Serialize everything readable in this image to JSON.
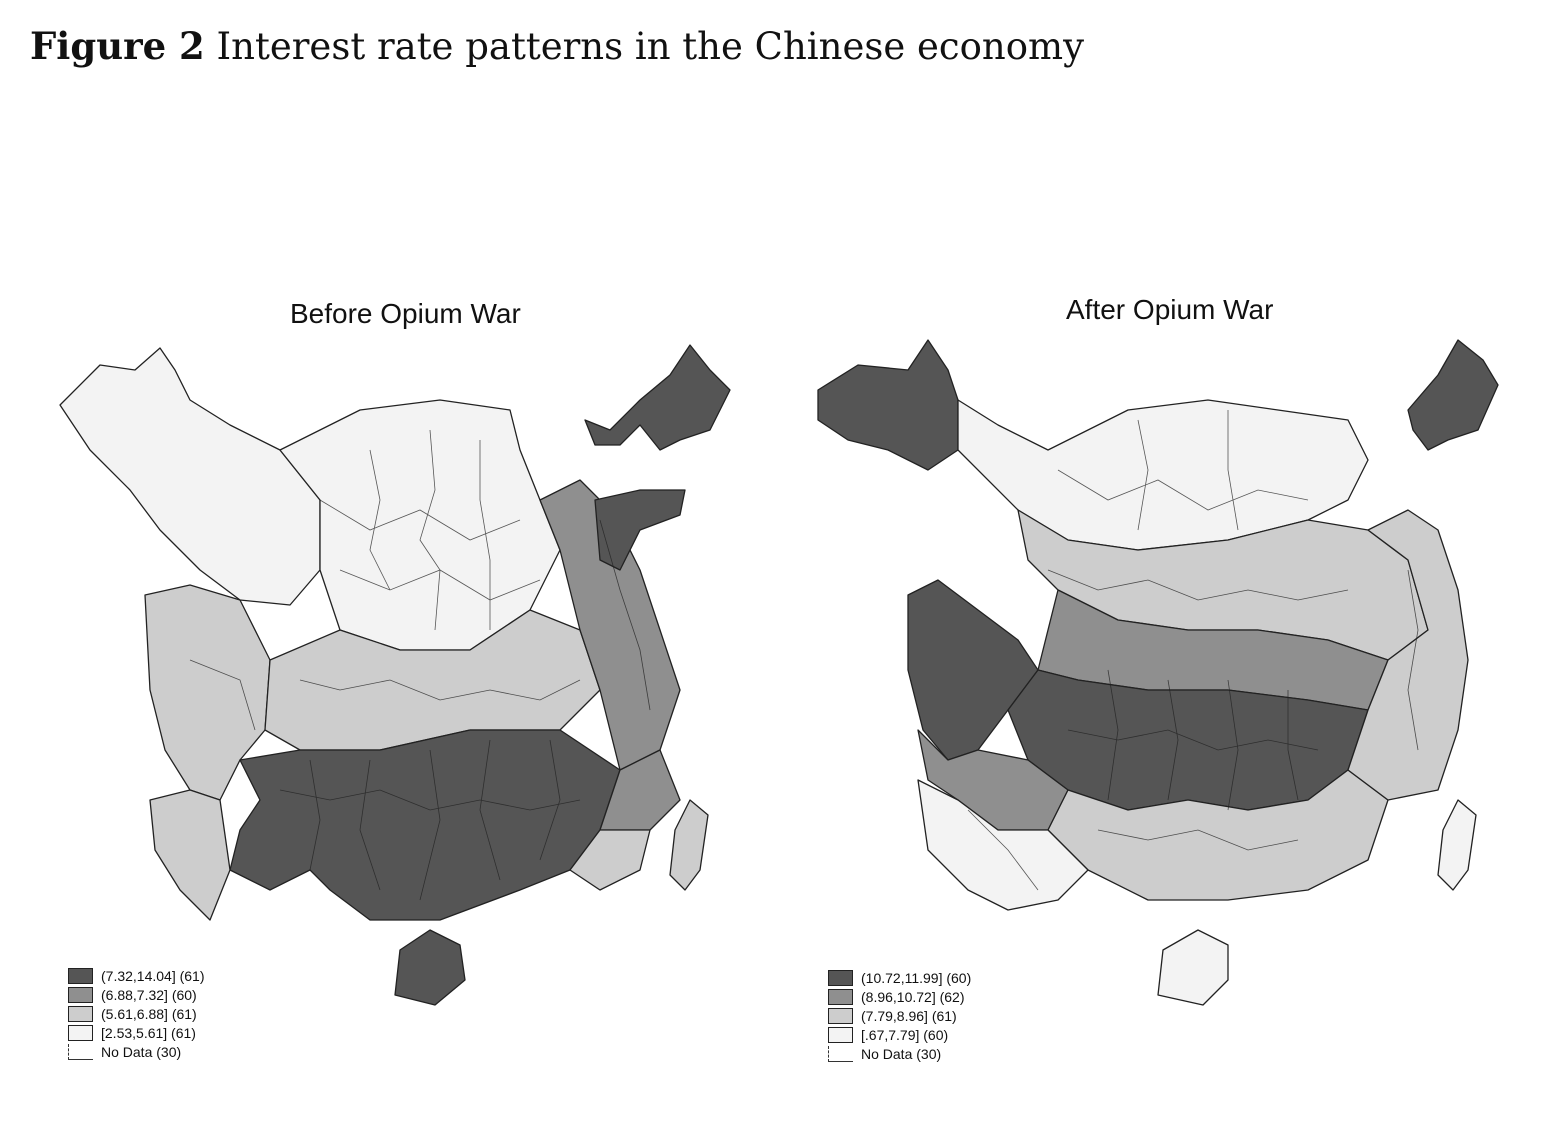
{
  "figure": {
    "label": "Figure 2",
    "caption": "Interest rate patterns in the Chinese economy"
  },
  "colors": {
    "q4": "#555555",
    "q3": "#8f8f8f",
    "q2": "#cdcdcd",
    "q1": "#f3f3f3",
    "outline": "#222222"
  },
  "maps": [
    {
      "title": "Before Opium War",
      "legend": [
        {
          "label": "(7.32,14.04] (61)",
          "color": "#555555"
        },
        {
          "label": "(6.88,7.32] (60)",
          "color": "#8f8f8f"
        },
        {
          "label": "(5.61,6.88] (61)",
          "color": "#cdcdcd"
        },
        {
          "label": "[2.53,5.61] (61)",
          "color": "#f3f3f3"
        },
        {
          "label": "No Data (30)",
          "color": "none"
        }
      ]
    },
    {
      "title": "After Opium War",
      "legend": [
        {
          "label": "(10.72,11.99] (60)",
          "color": "#555555"
        },
        {
          "label": "(8.96,10.72] (62)",
          "color": "#8f8f8f"
        },
        {
          "label": "(7.79,8.96] (61)",
          "color": "#cdcdcd"
        },
        {
          "label": "[.67,7.79] (60)",
          "color": "#f3f3f3"
        },
        {
          "label": "No Data (30)",
          "color": "none"
        }
      ]
    }
  ]
}
